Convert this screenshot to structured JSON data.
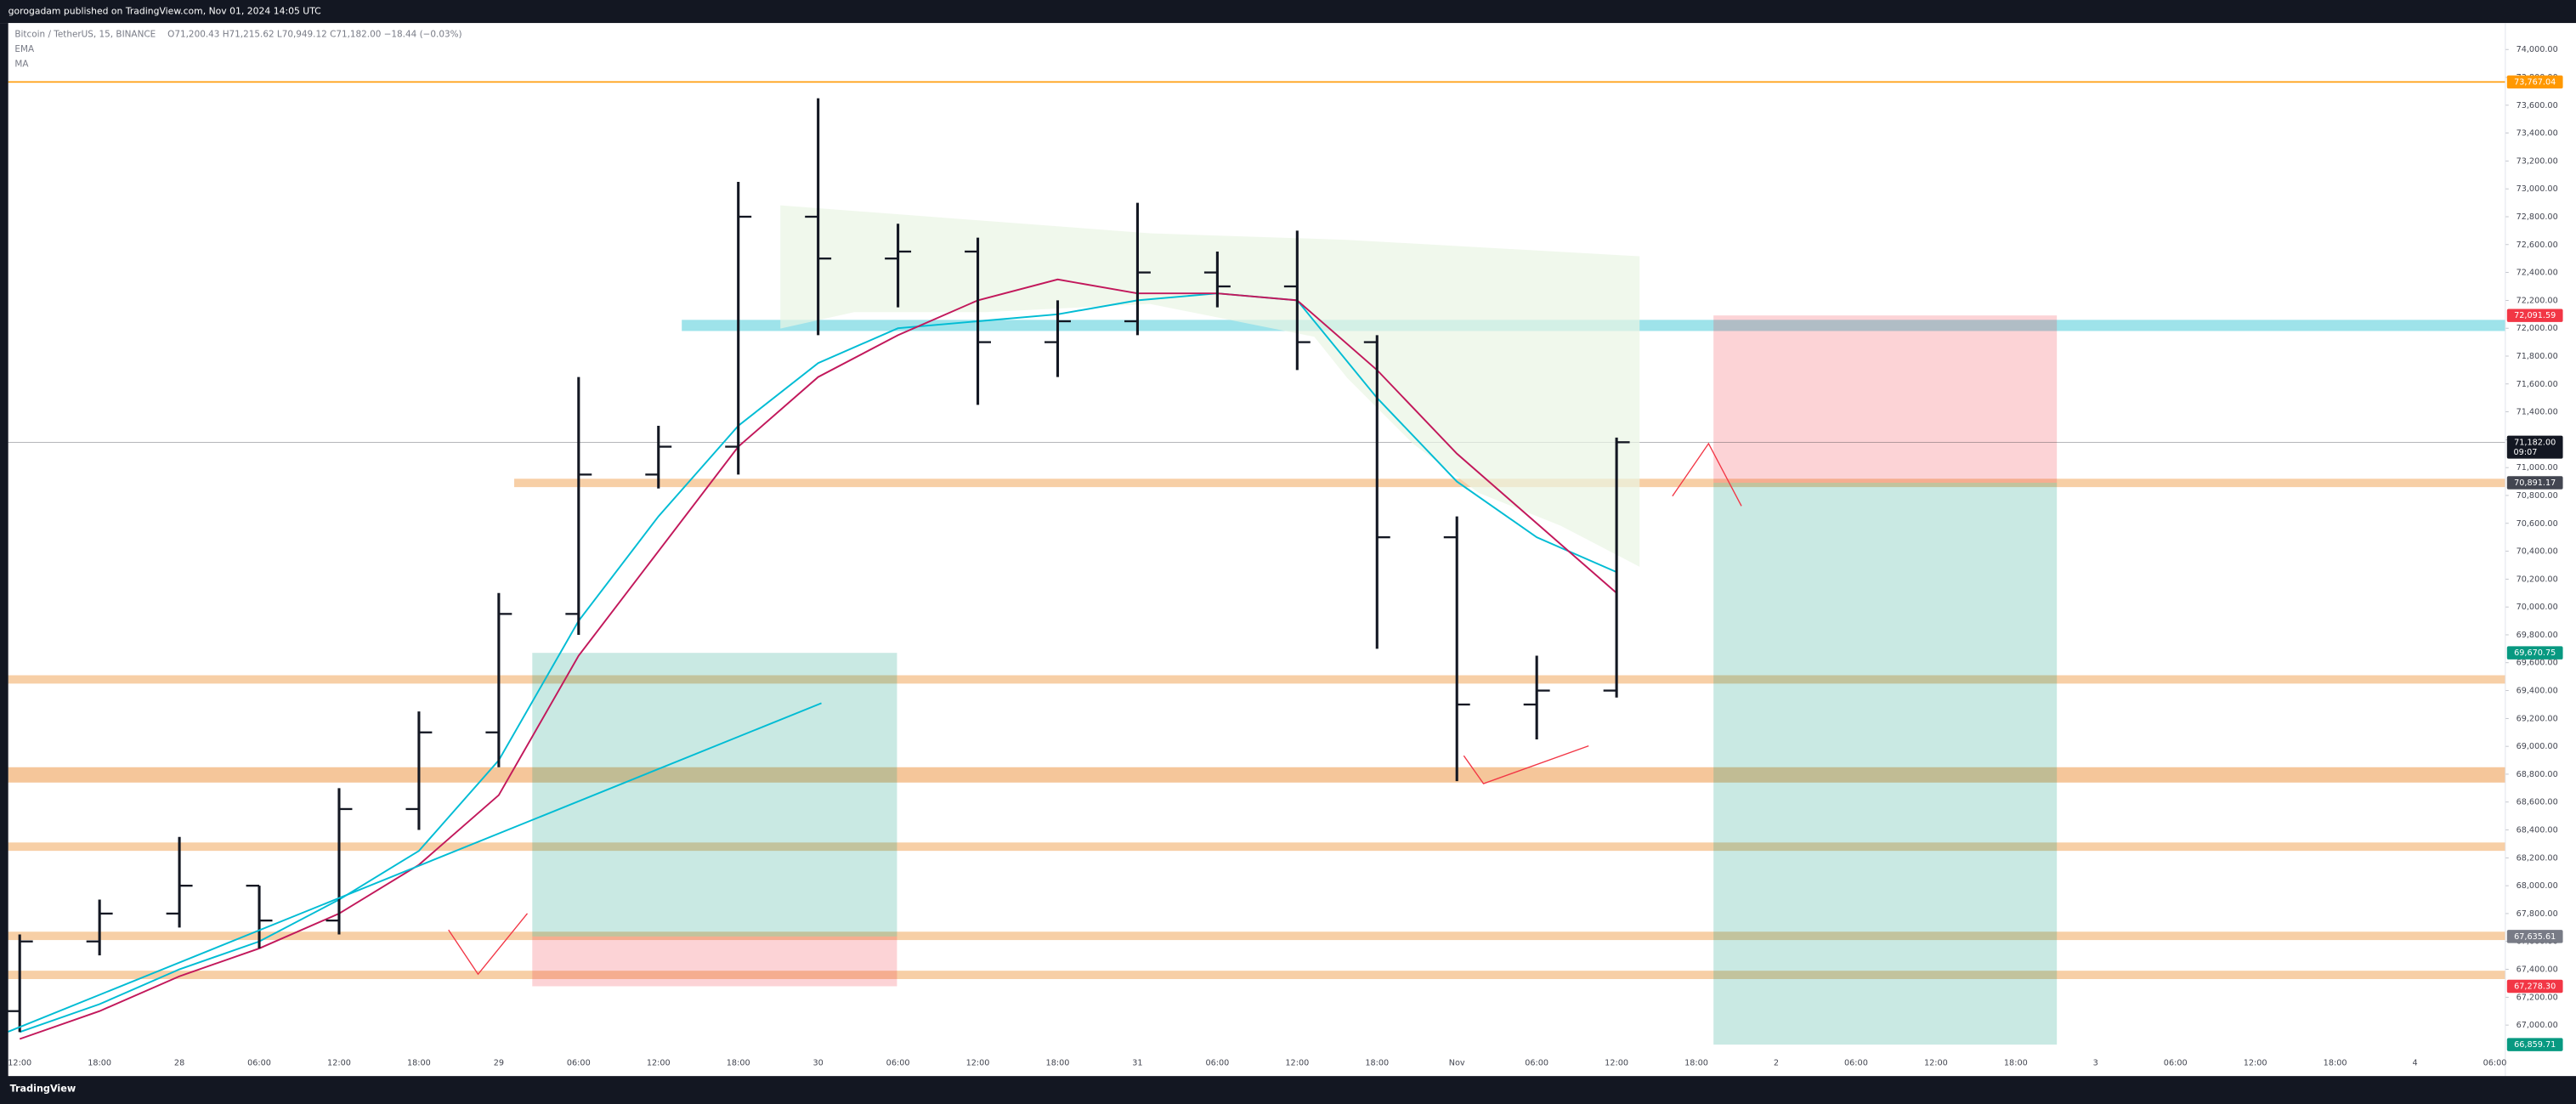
{
  "header": {
    "publisher": "gorogadam published on TradingView.com, Nov 01, 2024 14:05 UTC",
    "symbol": "Bitcoin / TetherUS, 15, BINANCE",
    "ohlc": "O71,200.43 H71,215.62 L70,949.12 C71,182.00 −18.44 (−0.03%)",
    "indicators": [
      "EMA",
      "MA"
    ],
    "brand": "TradingView"
  },
  "chart_data": {
    "type": "ohlc",
    "bar_color": "#131722",
    "categories": [
      "12:00",
      "18:00",
      "28",
      "06:00",
      "12:00",
      "18:00",
      "29",
      "06:00",
      "12:00",
      "18:00",
      "30",
      "06:00",
      "12:00",
      "18:00",
      "31",
      "06:00",
      "12:00",
      "18:00",
      "Nov",
      "06:00",
      "12:00",
      "18:00",
      "2",
      "06:00",
      "12:00",
      "18:00",
      "3",
      "06:00",
      "12:00",
      "18:00",
      "4",
      "06:00"
    ],
    "open": [
      67100,
      67600,
      67800,
      68000,
      67750,
      68550,
      69100,
      69950,
      70950,
      71150,
      72800,
      72500,
      72550,
      71900,
      72050,
      72400,
      72300,
      71900,
      70500,
      69300,
      69400,
      null,
      null,
      null,
      null,
      null,
      null,
      null,
      null,
      null,
      null,
      null
    ],
    "high": [
      67650,
      67900,
      68350,
      68000,
      68700,
      69250,
      70100,
      71650,
      71300,
      73050,
      73650,
      72750,
      72650,
      72200,
      72900,
      72550,
      72700,
      71950,
      70650,
      69650,
      71215.62,
      null,
      null,
      null,
      null,
      null,
      null,
      null,
      null,
      null,
      null,
      null
    ],
    "low": [
      66950,
      67500,
      67700,
      67550,
      67650,
      68400,
      68850,
      69800,
      70850,
      70950,
      71950,
      72150,
      71450,
      71650,
      71950,
      72150,
      71700,
      69700,
      68750,
      69050,
      69350,
      null,
      null,
      null,
      null,
      null,
      null,
      null,
      null,
      null,
      null,
      null
    ],
    "close": [
      67600,
      67800,
      68000,
      67750,
      68550,
      69100,
      69950,
      70950,
      71150,
      72800,
      72500,
      72550,
      71900,
      72050,
      72400,
      72300,
      71900,
      70500,
      69300,
      69400,
      71182,
      null,
      null,
      null,
      null,
      null,
      null,
      null,
      null,
      null,
      null,
      null
    ],
    "series": [
      {
        "name": "EMA",
        "color": "#00bcd4",
        "values": [
          66950,
          67150,
          67400,
          67600,
          67900,
          68250,
          68900,
          69900,
          70650,
          71300,
          71750,
          72000,
          72050,
          72100,
          72200,
          72250,
          72200,
          71500,
          70900,
          70500,
          70250,
          null,
          null,
          null,
          null,
          null,
          null,
          null,
          null,
          null,
          null,
          null
        ]
      },
      {
        "name": "MA",
        "color": "#c2185b",
        "values": [
          66900,
          67100,
          67350,
          67550,
          67800,
          68150,
          68650,
          69650,
          70400,
          71150,
          71650,
          71950,
          72200,
          72350,
          72250,
          72250,
          72200,
          71700,
          71100,
          70600,
          70100,
          null,
          null,
          null,
          null,
          null,
          null,
          null,
          null,
          null,
          null,
          null
        ]
      }
    ],
    "ylim": [
      66634,
      74190
    ],
    "yticks": [
      {
        "value": 67000,
        "label": "67,000.00"
      },
      {
        "value": 67200,
        "label": "67,200.00"
      },
      {
        "value": 67400,
        "label": "67,400.00"
      },
      {
        "value": 67600,
        "label": "67,600.00"
      },
      {
        "value": 67800,
        "label": "67,800.00"
      },
      {
        "value": 68000,
        "label": "68,000.00"
      },
      {
        "value": 68200,
        "label": "68,200.00"
      },
      {
        "value": 68400,
        "label": "68,400.00"
      },
      {
        "value": 68600,
        "label": "68,600.00"
      },
      {
        "value": 68800,
        "label": "68,800.00"
      },
      {
        "value": 69000,
        "label": "69,000.00"
      },
      {
        "value": 69200,
        "label": "69,200.00"
      },
      {
        "value": 69400,
        "label": "69,400.00"
      },
      {
        "value": 69600,
        "label": "69,600.00"
      },
      {
        "value": 69800,
        "label": "69,800.00"
      },
      {
        "value": 70000,
        "label": "70,000.00"
      },
      {
        "value": 70200,
        "label": "70,200.00"
      },
      {
        "value": 70400,
        "label": "70,400.00"
      },
      {
        "value": 70600,
        "label": "70,600.00"
      },
      {
        "value": 70800,
        "label": "70,800.00"
      },
      {
        "value": 71000,
        "label": "71,000.00"
      },
      {
        "value": 71200,
        "label": "71,200.00"
      },
      {
        "value": 71400,
        "label": "71,400.00"
      },
      {
        "value": 71600,
        "label": "71,600.00"
      },
      {
        "value": 71800,
        "label": "71,800.00"
      },
      {
        "value": 72000,
        "label": "72,000.00"
      },
      {
        "value": 72200,
        "label": "72,200.00"
      },
      {
        "value": 72400,
        "label": "72,400.00"
      },
      {
        "value": 72600,
        "label": "72,600.00"
      },
      {
        "value": 72800,
        "label": "72,800.00"
      },
      {
        "value": 73000,
        "label": "73,000.00"
      },
      {
        "value": 73200,
        "label": "73,200.00"
      },
      {
        "value": 73400,
        "label": "73,400.00"
      },
      {
        "value": 73600,
        "label": "73,600.00"
      },
      {
        "value": 73800,
        "label": "73,800.00"
      },
      {
        "value": 74000,
        "label": "74,000.00"
      }
    ],
    "zones": [
      {
        "range": [
          72060,
          71980
        ],
        "color": "#9ee3ea"
      },
      {
        "range": [
          70920,
          70860
        ],
        "color": "#f7cfa6"
      },
      {
        "range": [
          69510,
          69450
        ],
        "color": "#f7cfa6"
      },
      {
        "range": [
          68850,
          68740
        ],
        "color": "#f5c69a"
      },
      {
        "range": [
          68310,
          68250
        ],
        "color": "#f7cfa6"
      },
      {
        "range": [
          67670,
          67610
        ],
        "color": "#f7cfa6"
      },
      {
        "range": [
          67390,
          67330
        ],
        "color": "#f7cfa6"
      }
    ],
    "positions": [
      {
        "entry": 67635.61,
        "target": 69670.75,
        "stop": 67278.3
      },
      {
        "entry": 70891.17,
        "target": 66859.71,
        "stop": 72091.59
      }
    ],
    "price_labels": [
      {
        "value": 73767.04,
        "label": "73,767.04",
        "color": "#ff9800",
        "line": true
      },
      {
        "value": 72091.59,
        "label": "72,091.59",
        "color": "#f23645",
        "line": false
      },
      {
        "value": 71182,
        "label": "71,182.00",
        "color": "#131722",
        "line": true,
        "countdown": "09:07"
      },
      {
        "value": 70891.17,
        "label": "70,891.17",
        "color": "#434651",
        "line": false
      },
      {
        "value": 69670.75,
        "label": "69,670.75",
        "color": "#089981",
        "line": false
      },
      {
        "value": 67635.61,
        "label": "67,635.61",
        "color": "#787b86",
        "line": false
      },
      {
        "value": 67278.3,
        "label": "67,278.30",
        "color": "#f23645",
        "line": false
      },
      {
        "value": 66859.71,
        "label": "66,859.71",
        "color": "#089981",
        "line": false
      }
    ]
  }
}
